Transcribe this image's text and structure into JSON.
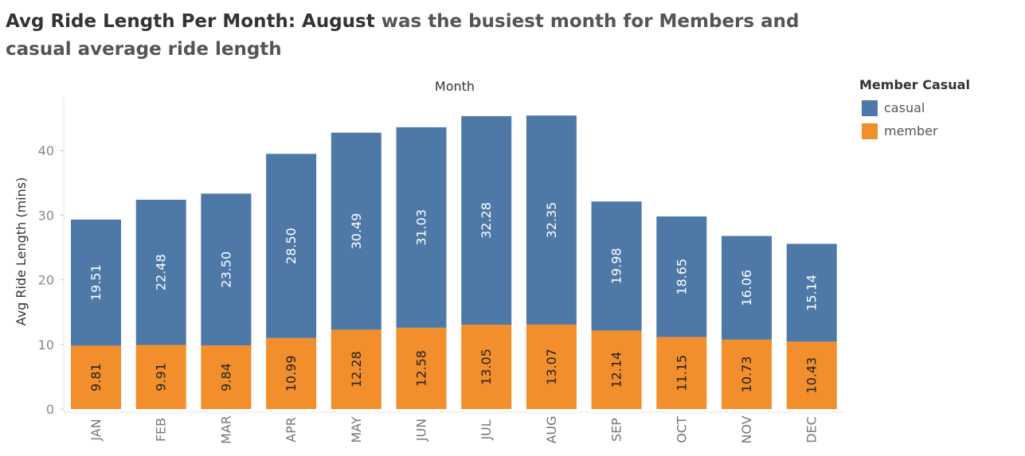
{
  "title": {
    "bold": "Avg Ride Length Per Month: August",
    "rest": " was the busiest month for Members and casual average ride length"
  },
  "legend": {
    "title": "Member Casual",
    "items": [
      {
        "label": "casual",
        "color": "#4e79a7"
      },
      {
        "label": "member",
        "color": "#f28e2b"
      }
    ]
  },
  "chart_data": {
    "type": "bar",
    "stacked": true,
    "title": "Avg Ride Length Per Month: August was the busiest month for Members and casual average ride length",
    "xlabel": "Month",
    "ylabel": "Avg Ride Length (mins)",
    "ylim": [
      0,
      47
    ],
    "yticks": [
      0,
      10,
      20,
      30,
      40
    ],
    "grid": false,
    "legend_position": "top-right",
    "categories": [
      "JAN",
      "FEB",
      "MAR",
      "APR",
      "MAY",
      "JUN",
      "JUL",
      "AUG",
      "SEP",
      "OCT",
      "NOV",
      "DEC"
    ],
    "series": [
      {
        "name": "member",
        "color": "#f28e2b",
        "values": [
          9.81,
          9.91,
          9.84,
          10.99,
          12.28,
          12.58,
          13.05,
          13.07,
          12.14,
          11.15,
          10.73,
          10.43
        ],
        "labels": [
          "9.81",
          "9.91",
          "9.84",
          "10.99",
          "12.28",
          "12.58",
          "13.05",
          "13.07",
          "12.14",
          "11.15",
          "10.73",
          "10.43"
        ]
      },
      {
        "name": "casual",
        "color": "#4e79a7",
        "values": [
          19.51,
          22.48,
          23.5,
          28.5,
          30.49,
          31.03,
          32.28,
          32.35,
          19.98,
          18.65,
          16.06,
          15.14
        ],
        "labels": [
          "19.51",
          "22.48",
          "23.50",
          "28.50",
          "30.49",
          "31.03",
          "32.28",
          "32.35",
          "19.98",
          "18.65",
          "16.06",
          "15.14"
        ]
      }
    ]
  }
}
